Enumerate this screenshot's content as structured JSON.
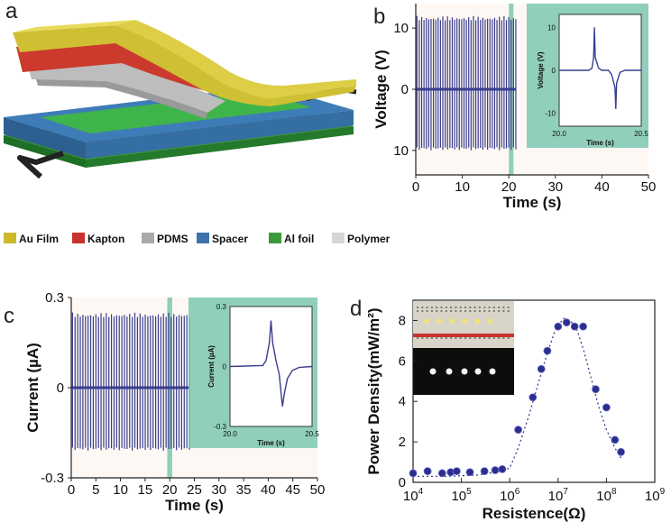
{
  "panels": {
    "a": {
      "letter": "a",
      "legend": [
        {
          "label": "Au Film",
          "color": "#cdb82a"
        },
        {
          "label": "Kapton",
          "color": "#c8332d"
        },
        {
          "label": "PDMS",
          "color": "#a9a9a9"
        },
        {
          "label": "Spacer",
          "color": "#3c73a8"
        },
        {
          "label": "Al foil",
          "color": "#3c9a3c"
        },
        {
          "label": "Polymer",
          "color": "#d6d6d6"
        }
      ]
    },
    "b": {
      "letter": "b"
    },
    "c": {
      "letter": "c"
    },
    "d": {
      "letter": "d"
    }
  },
  "colors": {
    "signal": "#3a3d8f",
    "highlight": "#7cc8b0",
    "dot": "#2b2e8c"
  },
  "chart_data": [
    {
      "id": "b",
      "type": "line",
      "title": "",
      "xlabel": "Time (s)",
      "ylabel": "Voltage (V)",
      "xlim": [
        0,
        50
      ],
      "ylim": [
        -14,
        14
      ],
      "xticks": [
        "0",
        "10",
        "20",
        "30",
        "40",
        "50"
      ],
      "yticks": [
        "10",
        "0",
        "10"
      ],
      "series": [
        {
          "name": "Voltage",
          "peak_positive": 12,
          "peak_negative": -10,
          "spike_count": 43
        }
      ],
      "highlight_window": [
        20,
        21
      ],
      "inset": {
        "type": "line",
        "xlabel": "Time (s)",
        "ylabel": "Voltage (V)",
        "xlim": [
          20.0,
          20.5
        ],
        "ylim": [
          -13,
          13
        ],
        "xticks": [
          "20.0",
          "20.5"
        ],
        "yticks": [
          "10",
          "0",
          "-10"
        ],
        "x": [
          20.0,
          20.18,
          20.2,
          20.21,
          20.215,
          20.22,
          20.24,
          20.26,
          20.3,
          20.32,
          20.34,
          20.345,
          20.35,
          20.37,
          20.4,
          20.5
        ],
        "y": [
          0,
          0,
          0.5,
          3,
          10,
          3,
          0.5,
          0,
          0,
          -1,
          -4,
          -9,
          -3,
          -0.5,
          0,
          0
        ]
      }
    },
    {
      "id": "c",
      "type": "line",
      "title": "",
      "xlabel": "Time (s)",
      "ylabel": "Current (µA)",
      "xlim": [
        0,
        50
      ],
      "ylim": [
        -0.3,
        0.3
      ],
      "xticks": [
        "0",
        "5",
        "10",
        "15",
        "20",
        "25",
        "30",
        "35",
        "40",
        "45",
        "50"
      ],
      "yticks": [
        "0.3",
        "0",
        "-0.3"
      ],
      "series": [
        {
          "name": "Current",
          "peak_positive": 0.25,
          "peak_negative": -0.21,
          "spike_count": 46
        }
      ],
      "highlight_window": [
        19.5,
        20.5
      ],
      "inset": {
        "type": "line",
        "xlabel": "Time (s)",
        "ylabel": "Current (µA)",
        "xlim": [
          20.0,
          20.5
        ],
        "ylim": [
          -0.3,
          0.3
        ],
        "xticks": [
          "20.0",
          "20.5"
        ],
        "yticks": [
          "0.3",
          "0",
          "-0.3"
        ],
        "x": [
          20.0,
          20.2,
          20.22,
          20.24,
          20.25,
          20.26,
          20.28,
          20.3,
          20.31,
          20.32,
          20.33,
          20.35,
          20.38,
          20.42,
          20.5
        ],
        "y": [
          0,
          0.005,
          0.03,
          0.12,
          0.23,
          0.12,
          0.03,
          -0.04,
          -0.12,
          -0.2,
          -0.14,
          -0.06,
          -0.02,
          -0.005,
          0
        ]
      }
    },
    {
      "id": "d",
      "type": "scatter",
      "title": "",
      "xlabel": "Resistence(Ω)",
      "ylabel": "Power Density(mW/m²)",
      "xscale": "log",
      "xlim": [
        10000,
        1000000000
      ],
      "ylim": [
        0,
        9
      ],
      "xticks": [
        {
          "base": "10",
          "exp": "4"
        },
        {
          "base": "10",
          "exp": "5"
        },
        {
          "base": "10",
          "exp": "6"
        },
        {
          "base": "10",
          "exp": "7"
        },
        {
          "base": "10",
          "exp": "8"
        },
        {
          "base": "10",
          "exp": "9"
        }
      ],
      "yticks": [
        "0",
        "2",
        "4",
        "6",
        "8"
      ],
      "x": [
        10000,
        20000,
        40000,
        60000,
        80000,
        150000,
        300000,
        500000,
        700000,
        1500000,
        3000000,
        4500000,
        6000000,
        10000000,
        15000000,
        22000000,
        33000000,
        60000000,
        100000000,
        150000000,
        200000000
      ],
      "y": [
        0.45,
        0.55,
        0.45,
        0.5,
        0.55,
        0.5,
        0.55,
        0.6,
        0.65,
        2.6,
        4.2,
        5.6,
        6.5,
        7.7,
        7.9,
        7.7,
        7.7,
        4.6,
        3.7,
        2.1,
        1.5
      ],
      "fit_curve": {
        "x": [
          10000,
          50000,
          200000,
          500000,
          1000000,
          1500000,
          2500000,
          4000000,
          6000000,
          9000000,
          13000000,
          18000000,
          25000000,
          35000000,
          50000000,
          70000000,
          100000000,
          150000000,
          200000000
        ],
        "y": [
          0.3,
          0.3,
          0.35,
          0.5,
          0.7,
          1.7,
          3.3,
          5.0,
          6.4,
          7.6,
          8.1,
          8.0,
          7.5,
          6.4,
          5.0,
          3.7,
          2.6,
          1.7,
          1.2
        ]
      }
    }
  ]
}
